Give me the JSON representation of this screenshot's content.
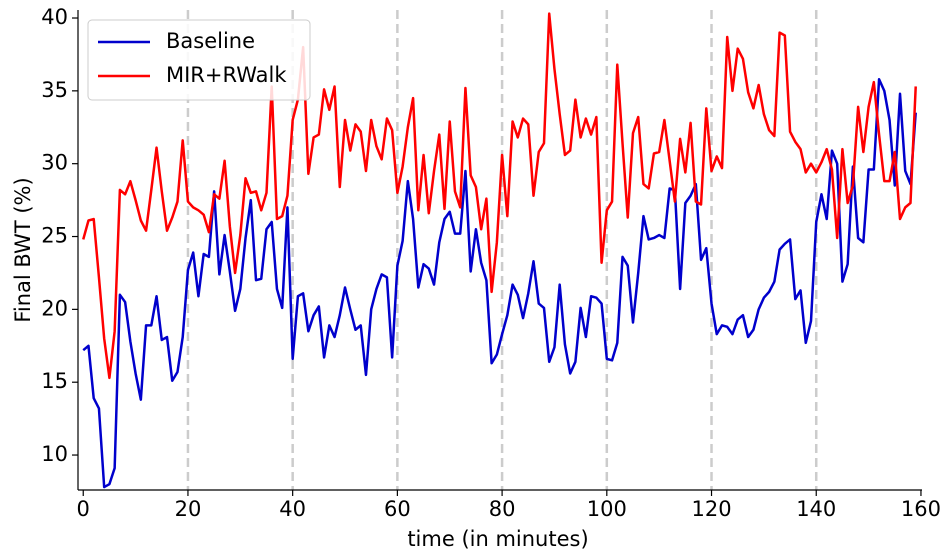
{
  "chart_data": {
    "type": "line",
    "xlabel": "time (in minutes)",
    "ylabel": "Final BWT (%)",
    "x": [
      0,
      1,
      2,
      3,
      4,
      5,
      6,
      7,
      8,
      9,
      10,
      11,
      12,
      13,
      14,
      15,
      16,
      17,
      18,
      19,
      20,
      21,
      22,
      23,
      24,
      25,
      26,
      27,
      28,
      29,
      30,
      31,
      32,
      33,
      34,
      35,
      36,
      37,
      38,
      39,
      40,
      41,
      42,
      43,
      44,
      45,
      46,
      47,
      48,
      49,
      50,
      51,
      52,
      53,
      54,
      55,
      56,
      57,
      58,
      59,
      60,
      61,
      62,
      63,
      64,
      65,
      66,
      67,
      68,
      69,
      70,
      71,
      72,
      73,
      74,
      75,
      76,
      77,
      78,
      79,
      80,
      81,
      82,
      83,
      84,
      85,
      86,
      87,
      88,
      89,
      90,
      91,
      92,
      93,
      94,
      95,
      96,
      97,
      98,
      99,
      100,
      101,
      102,
      103,
      104,
      105,
      106,
      107,
      108,
      109,
      110,
      111,
      112,
      113,
      114,
      115,
      116,
      117,
      118,
      119,
      120,
      121,
      122,
      123,
      124,
      125,
      126,
      127,
      128,
      129,
      130,
      131,
      132,
      133,
      134,
      135,
      136,
      137,
      138,
      139,
      140,
      141,
      142,
      143,
      144,
      145,
      146,
      147,
      148,
      149,
      150,
      151,
      152,
      153,
      154,
      155,
      156,
      157,
      158,
      159
    ],
    "series": [
      {
        "name": "Baseline",
        "color": "#0000cc",
        "values": [
          17.2,
          17.5,
          13.9,
          13.2,
          7.8,
          8.0,
          9.1,
          21.0,
          20.5,
          17.8,
          15.6,
          13.8,
          18.9,
          18.9,
          20.9,
          17.9,
          18.1,
          15.1,
          15.7,
          18.1,
          22.7,
          23.9,
          20.9,
          23.8,
          23.6,
          28.1,
          22.4,
          25.1,
          22.6,
          19.9,
          21.4,
          24.9,
          27.5,
          22.0,
          22.1,
          25.5,
          26.0,
          21.4,
          20.1,
          27.0,
          16.6,
          20.9,
          21.1,
          18.5,
          19.6,
          20.2,
          16.7,
          18.9,
          18.1,
          19.6,
          21.5,
          20.0,
          18.6,
          18.9,
          15.5,
          20.0,
          21.4,
          22.4,
          22.2,
          16.7,
          23.0,
          24.7,
          28.8,
          26.2,
          21.5,
          23.1,
          22.8,
          21.7,
          24.6,
          26.2,
          26.7,
          25.2,
          25.2,
          29.5,
          22.6,
          25.5,
          23.2,
          22.0,
          16.3,
          16.9,
          18.3,
          19.6,
          21.7,
          21.0,
          19.4,
          21.1,
          23.3,
          20.4,
          20.1,
          16.4,
          17.4,
          21.7,
          17.6,
          15.6,
          16.4,
          20.1,
          18.1,
          20.9,
          20.8,
          20.4,
          16.6,
          16.5,
          17.7,
          23.6,
          23.0,
          19.1,
          22.5,
          26.4,
          24.8,
          24.9,
          25.1,
          24.9,
          28.3,
          28.2,
          21.4,
          27.3,
          27.8,
          28.6,
          23.4,
          24.2,
          20.4,
          18.3,
          18.9,
          18.8,
          18.3,
          19.3,
          19.6,
          18.1,
          18.6,
          20.0,
          20.8,
          21.2,
          21.9,
          24.1,
          24.5,
          24.8,
          20.7,
          21.3,
          17.7,
          19.2,
          26.0,
          27.9,
          26.2,
          30.9,
          30.0,
          21.9,
          23.1,
          29.8,
          24.9,
          24.6,
          29.6,
          29.6,
          35.8,
          35.0,
          33.0,
          28.5,
          34.8,
          29.5,
          28.6,
          33.5
        ]
      },
      {
        "name": "MIR+RWalk",
        "color": "#ff0000",
        "values": [
          24.8,
          26.1,
          26.2,
          22.2,
          18.0,
          15.3,
          18.5,
          28.2,
          27.9,
          28.8,
          27.5,
          26.1,
          25.4,
          28.2,
          31.1,
          28.1,
          25.4,
          26.3,
          27.4,
          31.6,
          27.4,
          27.0,
          26.8,
          26.5,
          25.3,
          27.9,
          27.6,
          30.2,
          25.7,
          22.5,
          25.1,
          29.0,
          28.0,
          28.1,
          26.8,
          28.0,
          35.3,
          26.2,
          26.4,
          27.8,
          33.0,
          34.4,
          38.0,
          29.3,
          31.8,
          32.0,
          35.1,
          33.7,
          35.3,
          28.4,
          33.0,
          30.9,
          32.7,
          32.2,
          29.5,
          33.0,
          31.2,
          30.3,
          33.1,
          32.3,
          28.0,
          29.8,
          32.5,
          34.5,
          26.8,
          30.6,
          26.6,
          29.5,
          32.0,
          26.9,
          32.9,
          28.1,
          27.0,
          35.2,
          29.2,
          28.4,
          25.5,
          27.6,
          21.2,
          24.6,
          30.6,
          26.4,
          32.9,
          31.8,
          33.1,
          32.7,
          27.8,
          30.8,
          31.4,
          40.3,
          36.5,
          33.4,
          30.6,
          30.9,
          34.4,
          31.8,
          33.1,
          32.0,
          33.2,
          23.2,
          26.8,
          27.4,
          36.8,
          31.4,
          26.3,
          32.1,
          33.2,
          28.6,
          28.3,
          30.7,
          30.8,
          33.0,
          30.2,
          27.4,
          31.7,
          29.4,
          32.8,
          27.4,
          27.2,
          33.8,
          29.5,
          30.5,
          29.7,
          38.7,
          35.0,
          37.9,
          37.2,
          34.9,
          33.8,
          35.4,
          33.4,
          32.3,
          31.9,
          39.0,
          38.8,
          32.2,
          31.5,
          31.0,
          29.4,
          30.0,
          29.4,
          30.1,
          31.0,
          29.6,
          24.9,
          31.0,
          27.3,
          28.5,
          33.9,
          30.8,
          33.9,
          35.6,
          32.0,
          28.8,
          28.8,
          30.8,
          26.2,
          27.0,
          27.3,
          35.3
        ]
      }
    ],
    "xlim": [
      -1,
      160.2
    ],
    "xticks": [
      0,
      20,
      40,
      60,
      80,
      100,
      120,
      140,
      160
    ],
    "ylim": [
      7.6,
      40.55
    ],
    "yticks": [
      10,
      15,
      20,
      25,
      30,
      35,
      40
    ],
    "vlines": [
      20,
      40,
      60,
      80,
      100,
      120,
      140
    ],
    "vline_color": "#cccccc",
    "legend": "upper left"
  }
}
